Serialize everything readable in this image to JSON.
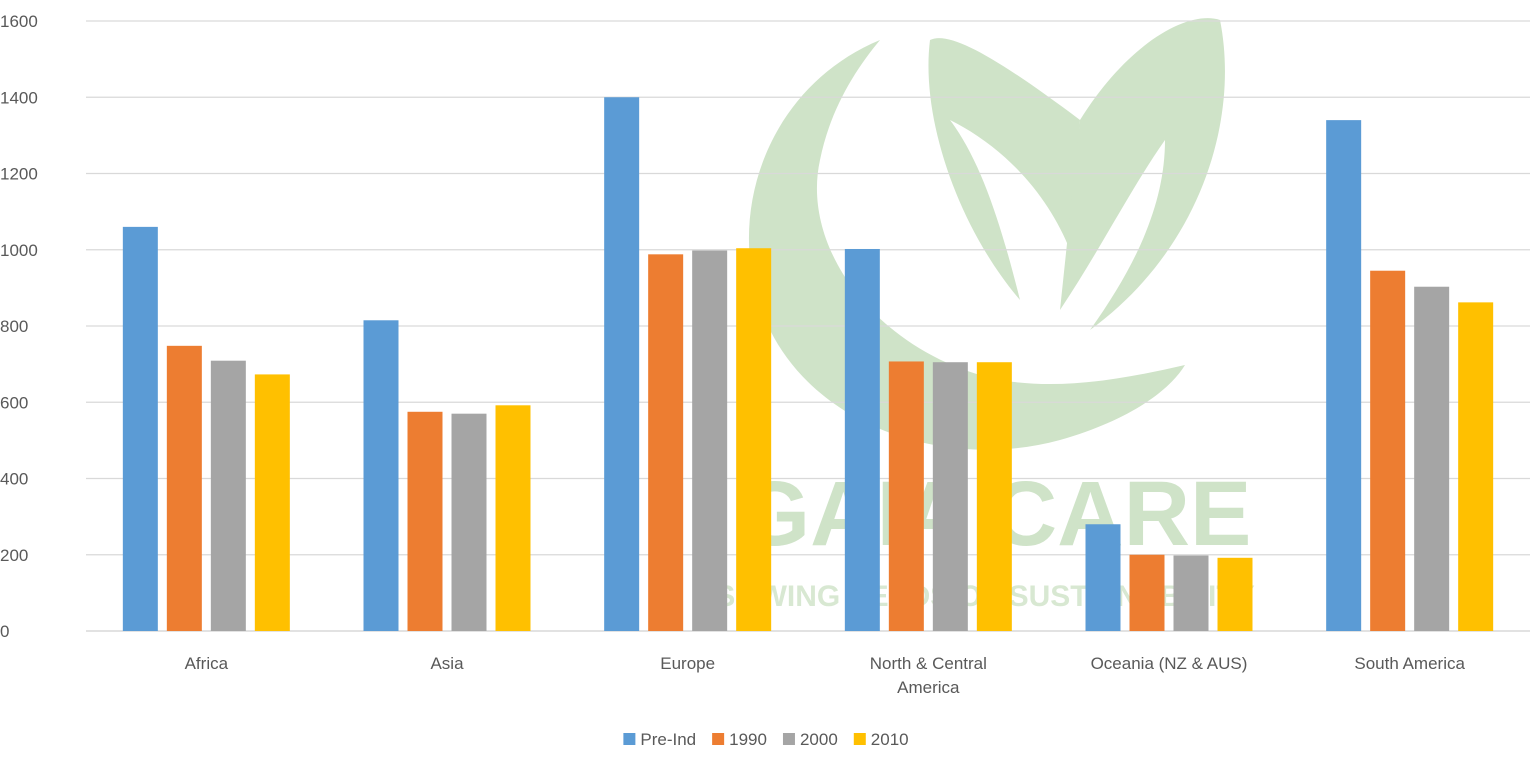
{
  "watermark": {
    "brand": "GAIA CARE",
    "tagline": "SOWING SEEDS OF SUSTAINABILITY",
    "color": "#cfe3c8"
  },
  "chart_data": {
    "type": "bar",
    "categories": [
      [
        "Africa"
      ],
      [
        "Asia"
      ],
      [
        "Europe"
      ],
      [
        "North & Central",
        "America"
      ],
      [
        "Oceania (NZ & AUS)"
      ],
      [
        "South America"
      ]
    ],
    "series": [
      {
        "name": "Pre-Ind",
        "color": "#5b9bd5",
        "values": [
          1060,
          815,
          1400,
          1002,
          280,
          1340
        ]
      },
      {
        "name": "1990",
        "color": "#ed7d31",
        "values": [
          748,
          575,
          988,
          707,
          200,
          945
        ]
      },
      {
        "name": "2000",
        "color": "#a5a5a5",
        "values": [
          709,
          570,
          998,
          705,
          198,
          903
        ]
      },
      {
        "name": "2010",
        "color": "#ffc000",
        "values": [
          673,
          592,
          1004,
          705,
          192,
          862
        ]
      }
    ],
    "yticks": [
      "0",
      "200",
      "400",
      "600",
      "800",
      "1000",
      "1200",
      "1400",
      "1600"
    ],
    "ylim": [
      0,
      1600
    ],
    "grid": true,
    "legend_position": "bottom",
    "title": "",
    "xlabel": "",
    "ylabel": ""
  }
}
